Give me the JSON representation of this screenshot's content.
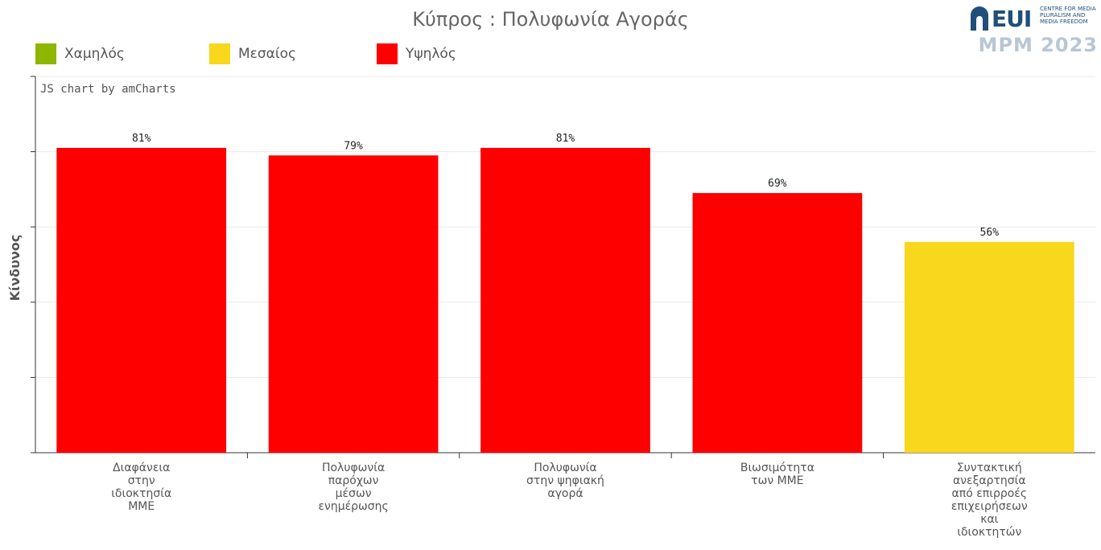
{
  "title": "Κύπρος : Πολυφωνία Αγοράς",
  "credit": "JS chart by amCharts",
  "logo": {
    "eui": "EUI",
    "centre": [
      "CENTRE FOR MEDIA",
      "PLURALISM AND",
      "MEDIA FREEDOM"
    ],
    "mpm": "MPM 2023"
  },
  "legend": [
    {
      "label": "Χαμηλός",
      "color": "#8db600"
    },
    {
      "label": "Μεσαίος",
      "color": "#f9d71c"
    },
    {
      "label": "Υψηλός",
      "color": "#ff0000"
    }
  ],
  "chart_data": {
    "type": "bar",
    "title": "Κύπρος : Πολυφωνία Αγοράς",
    "ylabel": "Κίνδυνος",
    "xlabel": "",
    "ylim": [
      0,
      100
    ],
    "grid": true,
    "categories": [
      [
        "Διαφάνεια",
        "στην",
        "ιδιοκτησία",
        "ΜΜΕ"
      ],
      [
        "Πολυφωνία",
        "παρόχων",
        "μέσων",
        "ενημέρωσης"
      ],
      [
        "Πολυφωνία",
        "στην ψηφιακή",
        "αγορά"
      ],
      [
        "Βιωσιμότητα",
        "των ΜΜΕ"
      ],
      [
        "Συντακτική",
        "ανεξαρτησία",
        "από επιρροές",
        "επιχειρήσεων",
        "και",
        "ιδιοκτητών"
      ]
    ],
    "values": [
      81,
      79,
      81,
      69,
      56
    ],
    "value_labels": [
      "81%",
      "79%",
      "81%",
      "69%",
      "56%"
    ],
    "bar_colors": [
      "#ff0000",
      "#ff0000",
      "#ff0000",
      "#ff0000",
      "#f9d71c"
    ]
  }
}
